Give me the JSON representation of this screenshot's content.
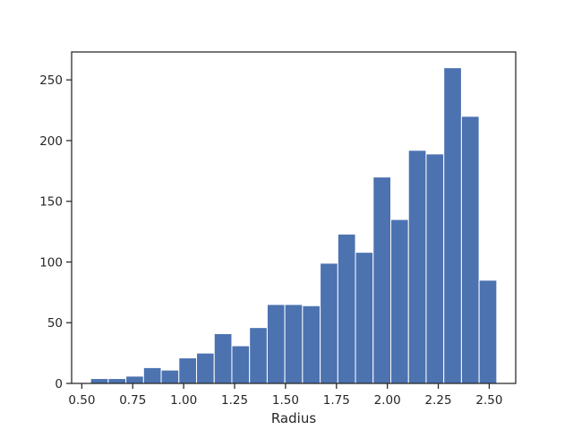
{
  "chart_data": {
    "type": "bar",
    "subtype": "histogram",
    "title": "",
    "xlabel": "Radius",
    "ylabel": "",
    "bar_color": "#4c72b0",
    "edge_color": "#ffffff",
    "grid": false,
    "xlim": [
      0.45,
      2.63
    ],
    "ylim": [
      0,
      273
    ],
    "xticks": [
      0.5,
      0.75,
      1.0,
      1.25,
      1.5,
      1.75,
      2.0,
      2.25,
      2.5
    ],
    "xtick_labels": [
      "0.50",
      "0.75",
      "1.00",
      "1.25",
      "1.50",
      "1.75",
      "2.00",
      "2.25",
      "2.50"
    ],
    "yticks": [
      0,
      50,
      100,
      150,
      200,
      250
    ],
    "ytick_labels": [
      "0",
      "50",
      "100",
      "150",
      "200",
      "250"
    ],
    "bin_edges": [
      0.543,
      0.6297,
      0.7164,
      0.8031,
      0.8898,
      0.9765,
      1.0632,
      1.1499,
      1.2366,
      1.3233,
      1.41,
      1.4967,
      1.5834,
      1.6701,
      1.7568,
      1.8435,
      1.9302,
      2.0169,
      2.1036,
      2.1903,
      2.277,
      2.3637,
      2.4504,
      2.5371
    ],
    "values": [
      4,
      4,
      6,
      13,
      11,
      21,
      25,
      41,
      31,
      46,
      65,
      65,
      64,
      99,
      123,
      108,
      170,
      135,
      192,
      189,
      260,
      220,
      85
    ]
  }
}
